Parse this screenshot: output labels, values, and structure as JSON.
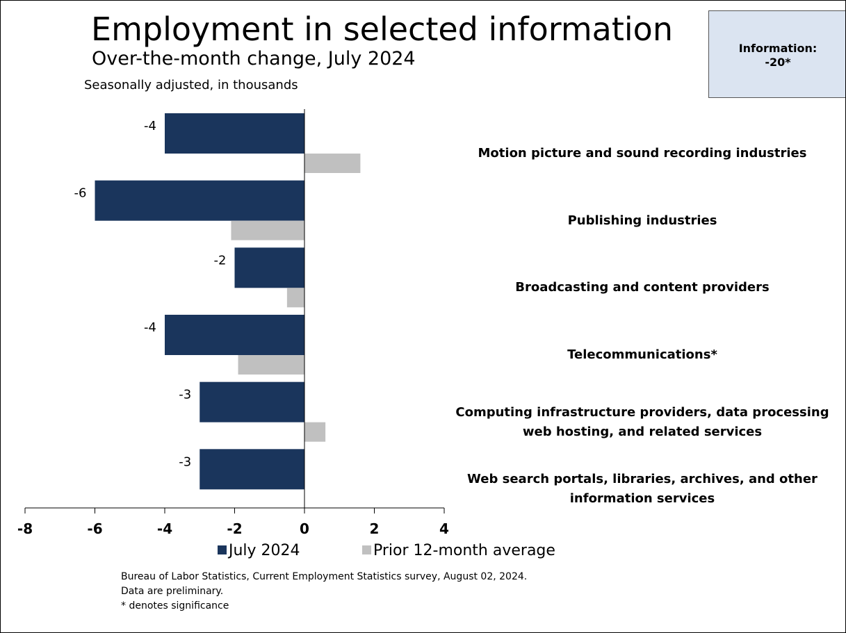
{
  "title": "Employment in selected information",
  "subtitle": "Over-the-month change, July 2024",
  "units_note": "Seasonally adjusted, in thousands",
  "info_box": {
    "line1": "Information:",
    "line2": "-20*"
  },
  "colors": {
    "july": "#1a355c",
    "prior": "#c0c0c0",
    "info_box_bg": "#dbe4f1"
  },
  "chart_data": {
    "type": "bar",
    "orientation": "horizontal",
    "categories": [
      "Motion picture and sound recording industries",
      "Publishing industries",
      "Broadcasting and content providers",
      "Telecommunications*",
      "Computing infrastructure providers, data processing, web hosting, and related services",
      "Web search portals, libraries, archives, and other information services"
    ],
    "category_lines": [
      [
        "Motion picture and sound recording industries"
      ],
      [
        "Publishing industries"
      ],
      [
        "Broadcasting and content providers"
      ],
      [
        "Telecommunications*"
      ],
      [
        "Computing infrastructure providers, data processing",
        "web hosting, and related services"
      ],
      [
        "Web search portals, libraries, archives, and other",
        "information services"
      ]
    ],
    "series": [
      {
        "name": "July 2024",
        "values": [
          -4,
          -6,
          -2,
          -4,
          -3,
          -3
        ],
        "data_labels": [
          "-4",
          "-6",
          "-2",
          "-4",
          "-3",
          "-3"
        ]
      },
      {
        "name": "Prior 12-month average",
        "values": [
          1.6,
          -2.1,
          -0.5,
          -1.9,
          0.6,
          0
        ]
      }
    ],
    "xlim": [
      -8,
      4
    ],
    "xticks": [
      -8,
      -6,
      -4,
      -2,
      0,
      2,
      4
    ],
    "xtick_labels": [
      "-8",
      "-6",
      "-4",
      "-2",
      "0",
      "2",
      "4"
    ],
    "xlabel": "",
    "ylabel": "",
    "grid": false,
    "legend_position": "bottom"
  },
  "footer": {
    "source": "Bureau of Labor Statistics, Current Employment Statistics survey, August 02, 2024.",
    "preliminary": "Data are preliminary.",
    "significance": "* denotes significance"
  }
}
